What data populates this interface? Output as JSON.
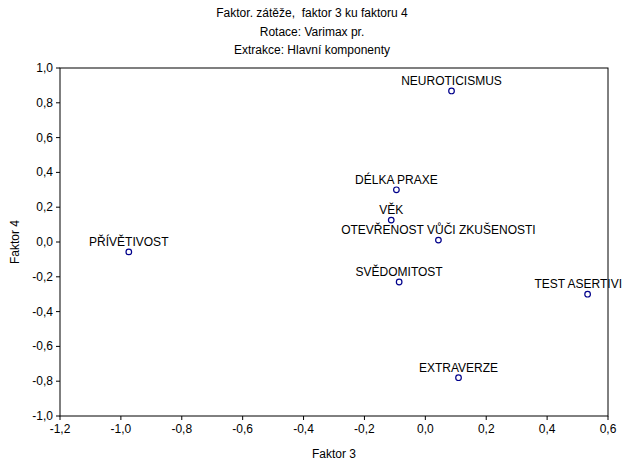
{
  "chart_data": {
    "type": "scatter",
    "title": "Faktor. zátěže,  faktor 3 ku faktoru 4",
    "subtitle": [
      "Rotace: Varimax pr.",
      "Extrakce: Hlavní komponenty"
    ],
    "x_label": "Faktor 3",
    "y_label": "Faktor 4",
    "labels": [
      "NEUROTICISMUS",
      "DÉLKA PRAXE",
      "VĚK",
      "OTEVŘENOST VŮČI ZKUŠENOSTI",
      "PŘÍVĚTIVOST",
      "SVĚDOMITOST",
      "TEST ASERTIVI",
      "EXTRAVERZE"
    ],
    "x": [
      0.086,
      -0.095,
      -0.112,
      0.043,
      -0.974,
      -0.086,
      0.533,
      0.109
    ],
    "values": [
      0.868,
      0.3,
      0.126,
      0.011,
      -0.057,
      -0.23,
      -0.3,
      -0.78
    ],
    "color": "#00008b",
    "marker": "circle",
    "data_labels": true,
    "grid": false,
    "xlim": [
      -1.2,
      0.6
    ],
    "ylim": [
      -1.0,
      1.0
    ],
    "xticks": [
      {
        "value": -1.2,
        "label": "-1,2"
      },
      {
        "value": -1.0,
        "label": "-1,0"
      },
      {
        "value": -0.8,
        "label": "-0,8"
      },
      {
        "value": -0.6,
        "label": "-0,6"
      },
      {
        "value": -0.4,
        "label": "-0,4"
      },
      {
        "value": -0.2,
        "label": "-0,2"
      },
      {
        "value": 0,
        "label": "0,0"
      },
      {
        "value": 0.2,
        "label": "0,2"
      },
      {
        "value": 0.4,
        "label": "0,4"
      },
      {
        "value": 0.6,
        "label": "0,6"
      }
    ],
    "yticks": [
      {
        "value": 1.0,
        "label": "1,0"
      },
      {
        "value": 0.8,
        "label": "0,8"
      },
      {
        "value": 0.6,
        "label": "0,6"
      },
      {
        "value": 0.4,
        "label": "0,4"
      },
      {
        "value": 0.2,
        "label": "0,2"
      },
      {
        "value": 0,
        "label": "0,0"
      },
      {
        "value": -0.2,
        "label": "-0,2"
      },
      {
        "value": -0.4,
        "label": "-0,4"
      },
      {
        "value": -0.6,
        "label": "-0,6"
      },
      {
        "value": -0.8,
        "label": "-0,8"
      },
      {
        "value": -1.0,
        "label": "-1,0"
      }
    ]
  }
}
